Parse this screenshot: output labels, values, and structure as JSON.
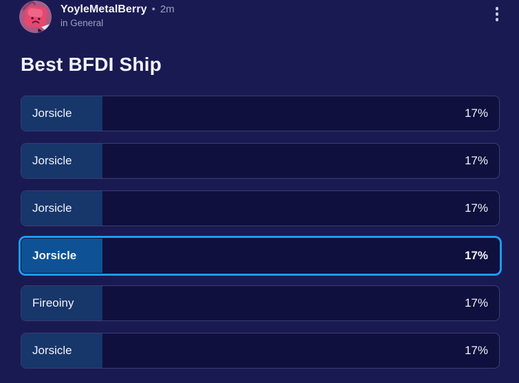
{
  "post": {
    "author": "YoyleMetalBerry",
    "separator": "•",
    "timestamp": "2m",
    "location": "in General"
  },
  "poll": {
    "title": "Best BFDI Ship",
    "options": [
      {
        "label": "Jorsicle",
        "percent": "17%",
        "value": 17,
        "selected": false
      },
      {
        "label": "Jorsicle",
        "percent": "17%",
        "value": 17,
        "selected": false
      },
      {
        "label": "Jorsicle",
        "percent": "17%",
        "value": 17,
        "selected": false
      },
      {
        "label": "Jorsicle",
        "percent": "17%",
        "value": 17,
        "selected": true
      },
      {
        "label": "Fireoiny",
        "percent": "17%",
        "value": 17,
        "selected": false
      },
      {
        "label": "Jorsicle",
        "percent": "17%",
        "value": 17,
        "selected": false
      }
    ]
  },
  "icons": {
    "menu": "kebab-menu-icon"
  },
  "colors": {
    "page-bg": "#1a1a53",
    "option-bg": "#10103f",
    "option-border": "rgba(125,140,200,0.38)",
    "fill-color": "#17366a",
    "fill-selected": "#0e5295",
    "accent": "#1d9cf1",
    "text-primary": "#f2f3f8",
    "text-secondary": "#9ba0bf",
    "icon-color": "#c9cce0"
  }
}
